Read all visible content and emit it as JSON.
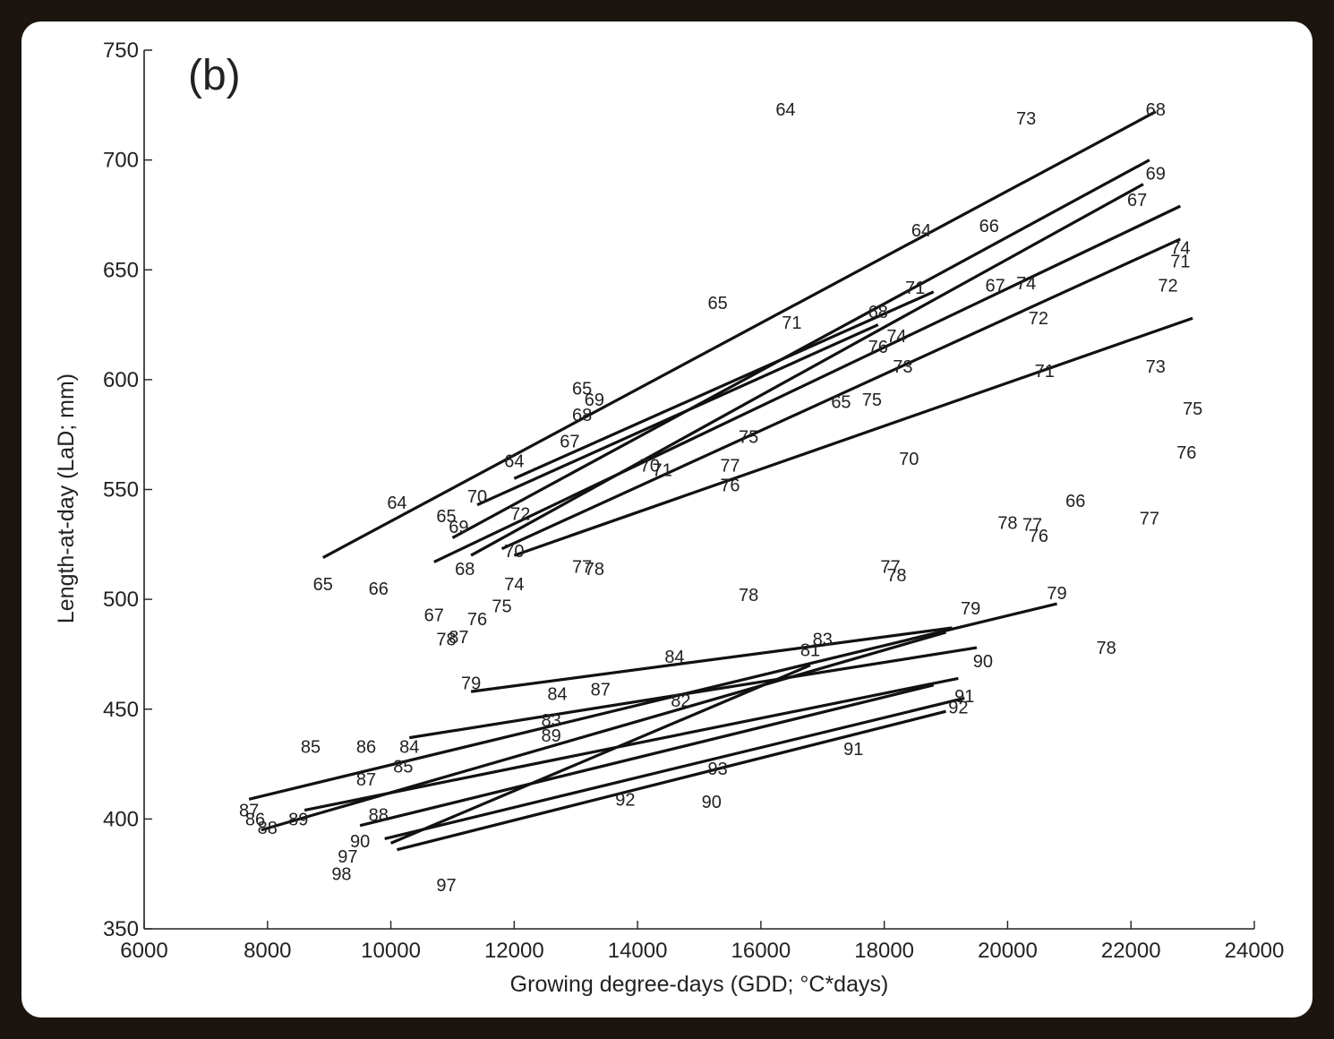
{
  "chart_data": {
    "type": "scatter",
    "panel_label": "(b)",
    "xlabel": "Growing degree-days (GDD; °C*days)",
    "ylabel": "Length-at-day (LaD; mm)",
    "xlim": [
      6000,
      24000
    ],
    "ylim": [
      350,
      750
    ],
    "x_ticks": [
      6000,
      8000,
      10000,
      12000,
      14000,
      16000,
      18000,
      20000,
      22000,
      24000
    ],
    "y_ticks": [
      350,
      400,
      450,
      500,
      550,
      600,
      650,
      700,
      750
    ],
    "grid": false,
    "labeled_points": [
      {
        "label": "64",
        "x": 16400,
        "y": 723
      },
      {
        "label": "73",
        "x": 20300,
        "y": 719
      },
      {
        "label": "68",
        "x": 22400,
        "y": 723
      },
      {
        "label": "69",
        "x": 22400,
        "y": 694
      },
      {
        "label": "67",
        "x": 22100,
        "y": 682
      },
      {
        "label": "64",
        "x": 18600,
        "y": 668
      },
      {
        "label": "66",
        "x": 19700,
        "y": 670
      },
      {
        "label": "74",
        "x": 22800,
        "y": 660
      },
      {
        "label": "71",
        "x": 22800,
        "y": 654
      },
      {
        "label": "72",
        "x": 22600,
        "y": 643
      },
      {
        "label": "65",
        "x": 15300,
        "y": 635
      },
      {
        "label": "67",
        "x": 19800,
        "y": 643
      },
      {
        "label": "74",
        "x": 20300,
        "y": 644
      },
      {
        "label": "71",
        "x": 18500,
        "y": 642
      },
      {
        "label": "72",
        "x": 20500,
        "y": 628
      },
      {
        "label": "71",
        "x": 16500,
        "y": 626
      },
      {
        "label": "68",
        "x": 17900,
        "y": 631
      },
      {
        "label": "74",
        "x": 18200,
        "y": 620
      },
      {
        "label": "76",
        "x": 17900,
        "y": 615
      },
      {
        "label": "73",
        "x": 18300,
        "y": 606
      },
      {
        "label": "71",
        "x": 20600,
        "y": 604
      },
      {
        "label": "73",
        "x": 22400,
        "y": 606
      },
      {
        "label": "75",
        "x": 23000,
        "y": 587
      },
      {
        "label": "76",
        "x": 22900,
        "y": 567
      },
      {
        "label": "65",
        "x": 17300,
        "y": 590
      },
      {
        "label": "75",
        "x": 17800,
        "y": 591
      },
      {
        "label": "70",
        "x": 18400,
        "y": 564
      },
      {
        "label": "66",
        "x": 21100,
        "y": 545
      },
      {
        "label": "77",
        "x": 22300,
        "y": 537
      },
      {
        "label": "78",
        "x": 20000,
        "y": 535
      },
      {
        "label": "77",
        "x": 20400,
        "y": 534
      },
      {
        "label": "76",
        "x": 20500,
        "y": 529
      },
      {
        "label": "65",
        "x": 13100,
        "y": 596
      },
      {
        "label": "69",
        "x": 13300,
        "y": 591
      },
      {
        "label": "68",
        "x": 13100,
        "y": 584
      },
      {
        "label": "67",
        "x": 12900,
        "y": 572
      },
      {
        "label": "64",
        "x": 12000,
        "y": 563
      },
      {
        "label": "64",
        "x": 10100,
        "y": 544
      },
      {
        "label": "70",
        "x": 11400,
        "y": 547
      },
      {
        "label": "65",
        "x": 10900,
        "y": 538
      },
      {
        "label": "69",
        "x": 11100,
        "y": 533
      },
      {
        "label": "72",
        "x": 12100,
        "y": 539
      },
      {
        "label": "70",
        "x": 12000,
        "y": 522
      },
      {
        "label": "68",
        "x": 11200,
        "y": 514
      },
      {
        "label": "74",
        "x": 12000,
        "y": 507
      },
      {
        "label": "77",
        "x": 13100,
        "y": 515
      },
      {
        "label": "78",
        "x": 13300,
        "y": 514
      },
      {
        "label": "75",
        "x": 15800,
        "y": 574
      },
      {
        "label": "77",
        "x": 15500,
        "y": 561
      },
      {
        "label": "76",
        "x": 15500,
        "y": 552
      },
      {
        "label": "70",
        "x": 14200,
        "y": 561
      },
      {
        "label": "71",
        "x": 14400,
        "y": 559
      },
      {
        "label": "65",
        "x": 8900,
        "y": 507
      },
      {
        "label": "66",
        "x": 9800,
        "y": 505
      },
      {
        "label": "67",
        "x": 10700,
        "y": 493
      },
      {
        "label": "75",
        "x": 11800,
        "y": 497
      },
      {
        "label": "76",
        "x": 11400,
        "y": 491
      },
      {
        "label": "78",
        "x": 10900,
        "y": 482
      },
      {
        "label": "87",
        "x": 11100,
        "y": 483
      },
      {
        "label": "78",
        "x": 15800,
        "y": 502
      },
      {
        "label": "77",
        "x": 18100,
        "y": 515
      },
      {
        "label": "78",
        "x": 18200,
        "y": 511
      },
      {
        "label": "79",
        "x": 19400,
        "y": 496
      },
      {
        "label": "79",
        "x": 20800,
        "y": 503
      },
      {
        "label": "78",
        "x": 21600,
        "y": 478
      },
      {
        "label": "79",
        "x": 11300,
        "y": 462
      },
      {
        "label": "84",
        "x": 12700,
        "y": 457
      },
      {
        "label": "87",
        "x": 13400,
        "y": 459
      },
      {
        "label": "84",
        "x": 14600,
        "y": 474
      },
      {
        "label": "90",
        "x": 19600,
        "y": 472
      },
      {
        "label": "91",
        "x": 19300,
        "y": 456
      },
      {
        "label": "92",
        "x": 19200,
        "y": 451
      },
      {
        "label": "83",
        "x": 17000,
        "y": 482
      },
      {
        "label": "82",
        "x": 14700,
        "y": 454
      },
      {
        "label": "83",
        "x": 12600,
        "y": 445
      },
      {
        "label": "89",
        "x": 12600,
        "y": 438
      },
      {
        "label": "85",
        "x": 8700,
        "y": 433
      },
      {
        "label": "86",
        "x": 9600,
        "y": 433
      },
      {
        "label": "84",
        "x": 10300,
        "y": 433
      },
      {
        "label": "85",
        "x": 10200,
        "y": 424
      },
      {
        "label": "87",
        "x": 9600,
        "y": 418
      },
      {
        "label": "87",
        "x": 7700,
        "y": 404
      },
      {
        "label": "86",
        "x": 7800,
        "y": 400
      },
      {
        "label": "88",
        "x": 8000,
        "y": 396
      },
      {
        "label": "89",
        "x": 8500,
        "y": 400
      },
      {
        "label": "88",
        "x": 9800,
        "y": 402
      },
      {
        "label": "90",
        "x": 9500,
        "y": 390
      },
      {
        "label": "97",
        "x": 9300,
        "y": 383
      },
      {
        "label": "98",
        "x": 9200,
        "y": 375
      },
      {
        "label": "97",
        "x": 10900,
        "y": 370
      },
      {
        "label": "90",
        "x": 15200,
        "y": 408
      },
      {
        "label": "92",
        "x": 13800,
        "y": 409
      },
      {
        "label": "93",
        "x": 15300,
        "y": 423
      },
      {
        "label": "91",
        "x": 17500,
        "y": 432
      },
      {
        "label": "81",
        "x": 16800,
        "y": 477
      }
    ],
    "regression_lines": [
      {
        "x": [
          8900,
          22400
        ],
        "y": [
          519,
          722
        ]
      },
      {
        "x": [
          11000,
          22300
        ],
        "y": [
          528,
          700
        ]
      },
      {
        "x": [
          11300,
          22200
        ],
        "y": [
          520,
          689
        ]
      },
      {
        "x": [
          10700,
          22800
        ],
        "y": [
          517,
          679
        ]
      },
      {
        "x": [
          11800,
          22800
        ],
        "y": [
          523,
          664
        ]
      },
      {
        "x": [
          12000,
          23000
        ],
        "y": [
          520,
          628
        ]
      },
      {
        "x": [
          12000,
          18800
        ],
        "y": [
          555,
          640
        ]
      },
      {
        "x": [
          11400,
          17900
        ],
        "y": [
          543,
          625
        ]
      },
      {
        "x": [
          7700,
          20800
        ],
        "y": [
          409,
          498
        ]
      },
      {
        "x": [
          11300,
          19100
        ],
        "y": [
          458,
          487
        ]
      },
      {
        "x": [
          10300,
          19500
        ],
        "y": [
          437,
          478
        ]
      },
      {
        "x": [
          7900,
          19000
        ],
        "y": [
          395,
          485
        ]
      },
      {
        "x": [
          8600,
          19200
        ],
        "y": [
          404,
          464
        ]
      },
      {
        "x": [
          9900,
          19300
        ],
        "y": [
          391,
          455
        ]
      },
      {
        "x": [
          10100,
          19000
        ],
        "y": [
          386,
          449
        ]
      },
      {
        "x": [
          9500,
          18800
        ],
        "y": [
          397,
          461
        ]
      },
      {
        "x": [
          10000,
          16800
        ],
        "y": [
          389,
          470
        ]
      }
    ]
  }
}
